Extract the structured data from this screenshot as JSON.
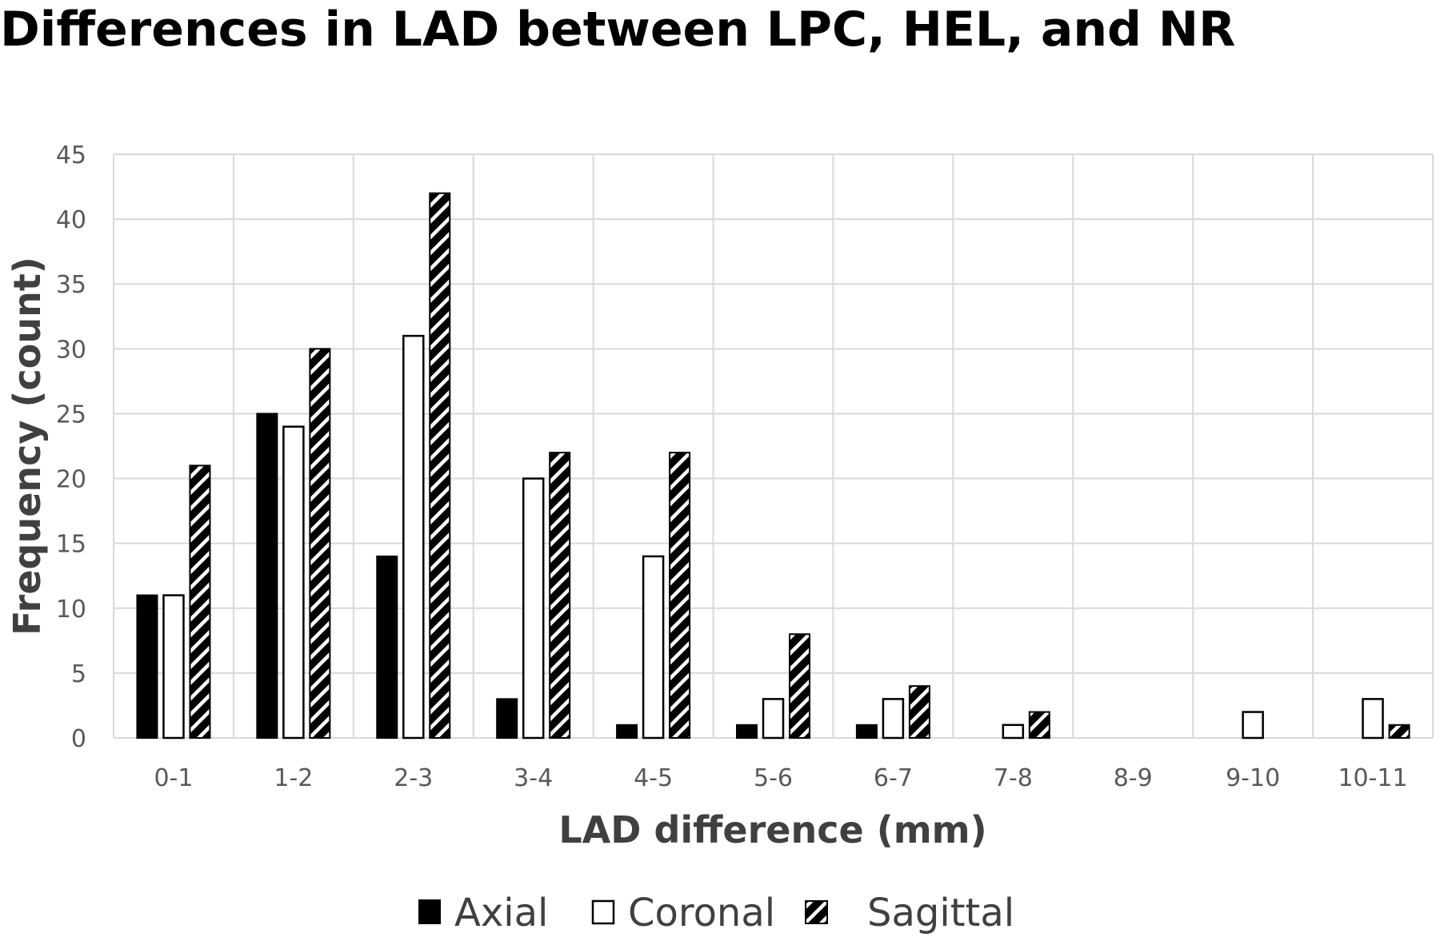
{
  "chart_data": {
    "type": "bar",
    "title": "Differences in LAD between LPC, HEL, and NR",
    "xlabel": "LAD difference (mm)",
    "ylabel": "Frequency (count)",
    "ylim": [
      0,
      45
    ],
    "yticks": [
      0,
      5,
      10,
      15,
      20,
      25,
      30,
      35,
      40,
      45
    ],
    "grid": true,
    "legend_position": "bottom",
    "categories": [
      "0-1",
      "1-2",
      "2-3",
      "3-4",
      "4-5",
      "5-6",
      "6-7",
      "7-8",
      "8-9",
      "9-10",
      "10-11"
    ],
    "series": [
      {
        "name": "Axial",
        "fill": "solid-black",
        "values": [
          11,
          25,
          14,
          3,
          1,
          1,
          1,
          0,
          0,
          0,
          0
        ]
      },
      {
        "name": "Coronal",
        "fill": "white",
        "values": [
          11,
          24,
          31,
          20,
          14,
          3,
          3,
          1,
          0,
          2,
          3
        ]
      },
      {
        "name": "Sagittal",
        "fill": "diagonal-hatch",
        "values": [
          21,
          30,
          42,
          22,
          22,
          8,
          4,
          2,
          0,
          0,
          1
        ]
      }
    ]
  },
  "colors": {
    "bar_dark": "#000000",
    "bar_light": "#ffffff",
    "grid": "#d9d9d9",
    "tick_text": "#595959",
    "axis_title_text": "#404040"
  }
}
